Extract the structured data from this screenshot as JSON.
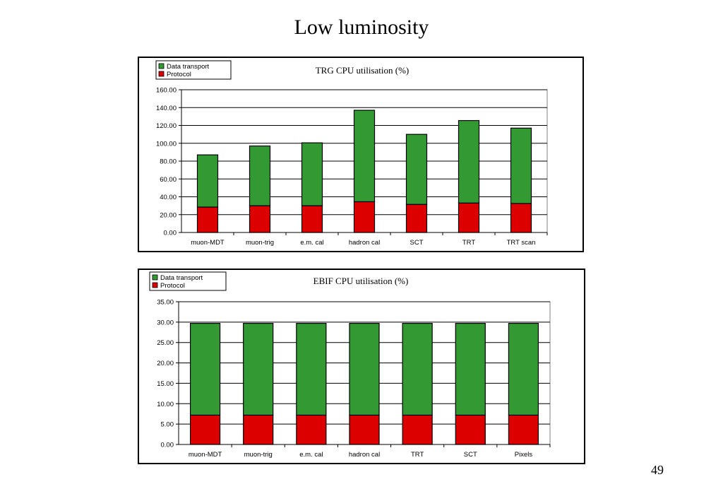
{
  "slide": {
    "title": "Low luminosity",
    "page_number": "49"
  },
  "colors": {
    "data_transport": "#339933",
    "protocol": "#dd0000",
    "grid": "#000000"
  },
  "chart_data": [
    {
      "type": "bar",
      "stacked": true,
      "title": "TRG CPU utilisation (%)",
      "categories": [
        "muon-MDT",
        "muon-trig",
        "e.m. cal",
        "hadron cal",
        "SCT",
        "TRT",
        "TRT scan"
      ],
      "series": [
        {
          "name": "Protocol",
          "values": [
            28.5,
            30,
            30,
            34.5,
            31.5,
            33,
            32.5
          ]
        },
        {
          "name": "Data transport",
          "values": [
            58.5,
            67,
            70.5,
            102.5,
            78.5,
            92.5,
            84.5
          ]
        }
      ],
      "ylim": [
        0,
        160
      ],
      "yticks": [
        "0.00",
        "20.00",
        "40.00",
        "60.00",
        "80.00",
        "100.00",
        "120.00",
        "140.00",
        "160.00"
      ],
      "legend_entries": [
        "Data transport",
        "Protocol"
      ],
      "legend_position": "top-left",
      "grid": true
    },
    {
      "type": "bar",
      "stacked": true,
      "title": "EBIF CPU utilisation (%)",
      "categories": [
        "muon-MDT",
        "muon-trig",
        "e.m. cal",
        "hadron cal",
        "TRT",
        "SCT",
        "Pixels"
      ],
      "series": [
        {
          "name": "Protocol",
          "values": [
            7.2,
            7.2,
            7.2,
            7.2,
            7.2,
            7.2,
            7.2
          ]
        },
        {
          "name": "Data transport",
          "values": [
            22.5,
            22.5,
            22.5,
            22.5,
            22.5,
            22.5,
            22.5
          ]
        }
      ],
      "ylim": [
        0,
        35
      ],
      "yticks": [
        "0.00",
        "5.00",
        "10.00",
        "15.00",
        "20.00",
        "25.00",
        "30.00",
        "35.00"
      ],
      "legend_entries": [
        "Data transport",
        "Protocol"
      ],
      "legend_position": "top-left",
      "grid": true
    }
  ]
}
